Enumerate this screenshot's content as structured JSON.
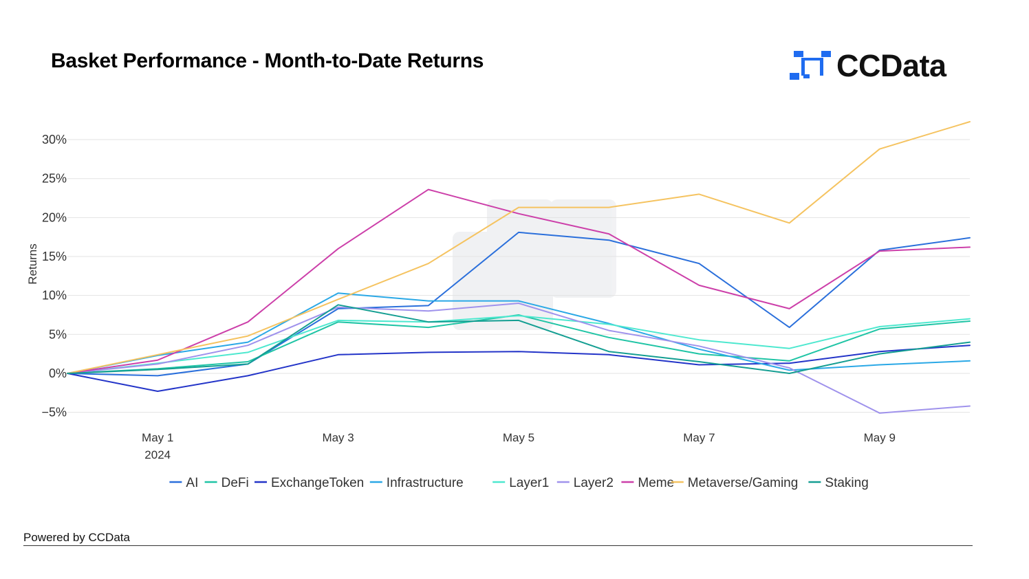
{
  "header": {
    "title": "Basket Performance - Month-to-Date Returns",
    "logo_text": "CCData",
    "logo_color": "#1f6cf0"
  },
  "footer": {
    "powered_by": "Powered by CCData"
  },
  "chart_data": {
    "type": "line",
    "title": "Basket Performance - Month-to-Date Returns",
    "xlabel": "",
    "ylabel": "Returns",
    "x": [
      "2024-04-30",
      "2024-05-01",
      "2024-05-02",
      "2024-05-03",
      "2024-05-04",
      "2024-05-05",
      "2024-05-06",
      "2024-05-07",
      "2024-05-08",
      "2024-05-09",
      "2024-05-10"
    ],
    "x_ticks": [
      {
        "index": 1,
        "label": "May 1",
        "sublabel": "2024"
      },
      {
        "index": 3,
        "label": "May 3",
        "sublabel": ""
      },
      {
        "index": 5,
        "label": "May 5",
        "sublabel": ""
      },
      {
        "index": 7,
        "label": "May 7",
        "sublabel": ""
      },
      {
        "index": 9,
        "label": "May 9",
        "sublabel": ""
      }
    ],
    "y_ticks": [
      {
        "value": -5,
        "label": "−5%"
      },
      {
        "value": 0,
        "label": "0%"
      },
      {
        "value": 5,
        "label": "5%"
      },
      {
        "value": 10,
        "label": "10%"
      },
      {
        "value": 15,
        "label": "15%"
      },
      {
        "value": 20,
        "label": "20%"
      },
      {
        "value": 25,
        "label": "25%"
      },
      {
        "value": 30,
        "label": "30%"
      }
    ],
    "ylim": [
      -6.8,
      33.8
    ],
    "grid": true,
    "legend_position": "bottom",
    "series": [
      {
        "name": "AI",
        "color": "#2a6fdb",
        "values": [
          0,
          -0.3,
          1.2,
          8.3,
          8.7,
          18.1,
          17.1,
          14.1,
          5.9,
          15.8,
          17.4
        ]
      },
      {
        "name": "DeFi",
        "color": "#1fc4a5",
        "values": [
          0,
          0.6,
          1.5,
          6.6,
          5.9,
          7.5,
          4.6,
          2.5,
          1.6,
          5.7,
          6.7
        ]
      },
      {
        "name": "ExchangeToken",
        "color": "#2334c8",
        "values": [
          0,
          -2.3,
          -0.3,
          2.4,
          2.7,
          2.8,
          2.4,
          1.1,
          1.3,
          2.8,
          3.6
        ]
      },
      {
        "name": "Infrastructure",
        "color": "#2aa8e6",
        "values": [
          0,
          2.3,
          4.0,
          10.3,
          9.3,
          9.3,
          6.4,
          3.1,
          0.4,
          1.1,
          1.6
        ]
      },
      {
        "name": "Layer1",
        "color": "#4de8cf",
        "values": [
          0,
          1.3,
          2.7,
          6.8,
          6.6,
          7.4,
          6.3,
          4.3,
          3.2,
          6.0,
          7.0
        ]
      },
      {
        "name": "Layer2",
        "color": "#9f92ec",
        "values": [
          0,
          1.2,
          3.6,
          8.5,
          8.0,
          9.0,
          5.5,
          3.5,
          0.7,
          -5.1,
          -4.2
        ]
      },
      {
        "name": "Meme",
        "color": "#cc3fa9",
        "values": [
          0,
          1.7,
          6.6,
          16.0,
          23.6,
          20.5,
          17.9,
          11.3,
          8.3,
          15.7,
          16.2
        ]
      },
      {
        "name": "Metaverse/Gaming",
        "color": "#f5c360",
        "values": [
          0,
          2.4,
          4.8,
          9.5,
          14.1,
          21.3,
          21.3,
          23.0,
          19.3,
          28.8,
          32.3
        ]
      },
      {
        "name": "Staking",
        "color": "#149e92",
        "values": [
          0,
          0.5,
          1.2,
          8.8,
          6.6,
          6.8,
          2.8,
          1.5,
          0.0,
          2.5,
          4.0
        ]
      }
    ]
  }
}
